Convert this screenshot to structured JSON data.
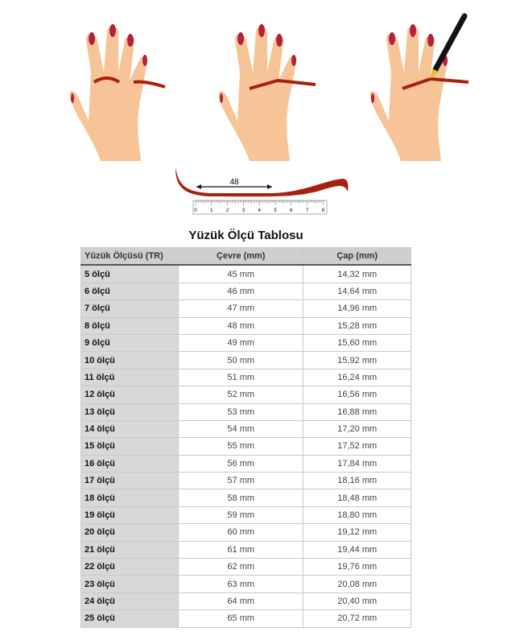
{
  "illustration": {
    "measure_label": "48",
    "ruler_ticks": [
      "0",
      "1",
      "2",
      "3",
      "4",
      "5",
      "6",
      "7",
      "8"
    ]
  },
  "title": "Yüzük Ölçü Tablosu",
  "table": {
    "headers": [
      "Yüzük Ölçüsü (TR)",
      "Çevre (mm)",
      "Çap (mm)"
    ],
    "rows": [
      [
        "5 ölçü",
        "45 mm",
        "14,32 mm"
      ],
      [
        "6 ölçü",
        "46 mm",
        "14,64 mm"
      ],
      [
        "7 ölçü",
        "47 mm",
        "14,96 mm"
      ],
      [
        "8 ölçü",
        "48 mm",
        "15,28 mm"
      ],
      [
        "9 ölçü",
        "49 mm",
        "15,60 mm"
      ],
      [
        "10 ölçü",
        "50 mm",
        "15,92 mm"
      ],
      [
        "11 ölçü",
        "51 mm",
        "16,24 mm"
      ],
      [
        "12 ölçü",
        "52 mm",
        "16,56 mm"
      ],
      [
        "13 ölçü",
        "53 mm",
        "16,88 mm"
      ],
      [
        "14 ölçü",
        "54 mm",
        "17,20 mm"
      ],
      [
        "15 ölçü",
        "55 mm",
        "17,52 mm"
      ],
      [
        "16 ölçü",
        "56 mm",
        "17,84 mm"
      ],
      [
        "17 ölçü",
        "57 mm",
        "18,16 mm"
      ],
      [
        "18 ölçü",
        "58 mm",
        "18,48 mm"
      ],
      [
        "19 ölçü",
        "59 mm",
        "18,80 mm"
      ],
      [
        "20 ölçü",
        "60 mm",
        "19,12 mm"
      ],
      [
        "21 ölçü",
        "61 mm",
        "19,44 mm"
      ],
      [
        "22 ölçü",
        "62 mm",
        "19,76 mm"
      ],
      [
        "23 ölçü",
        "63 mm",
        "20,08 mm"
      ],
      [
        "24 ölçü",
        "64 mm",
        "20,40 mm"
      ],
      [
        "25 ölçü",
        "65 mm",
        "20,72 mm"
      ]
    ]
  },
  "colors": {
    "skin": "#f6c497",
    "nail": "#b5203a",
    "string": "#a8200f",
    "header_bg": "#cfcfcf"
  }
}
